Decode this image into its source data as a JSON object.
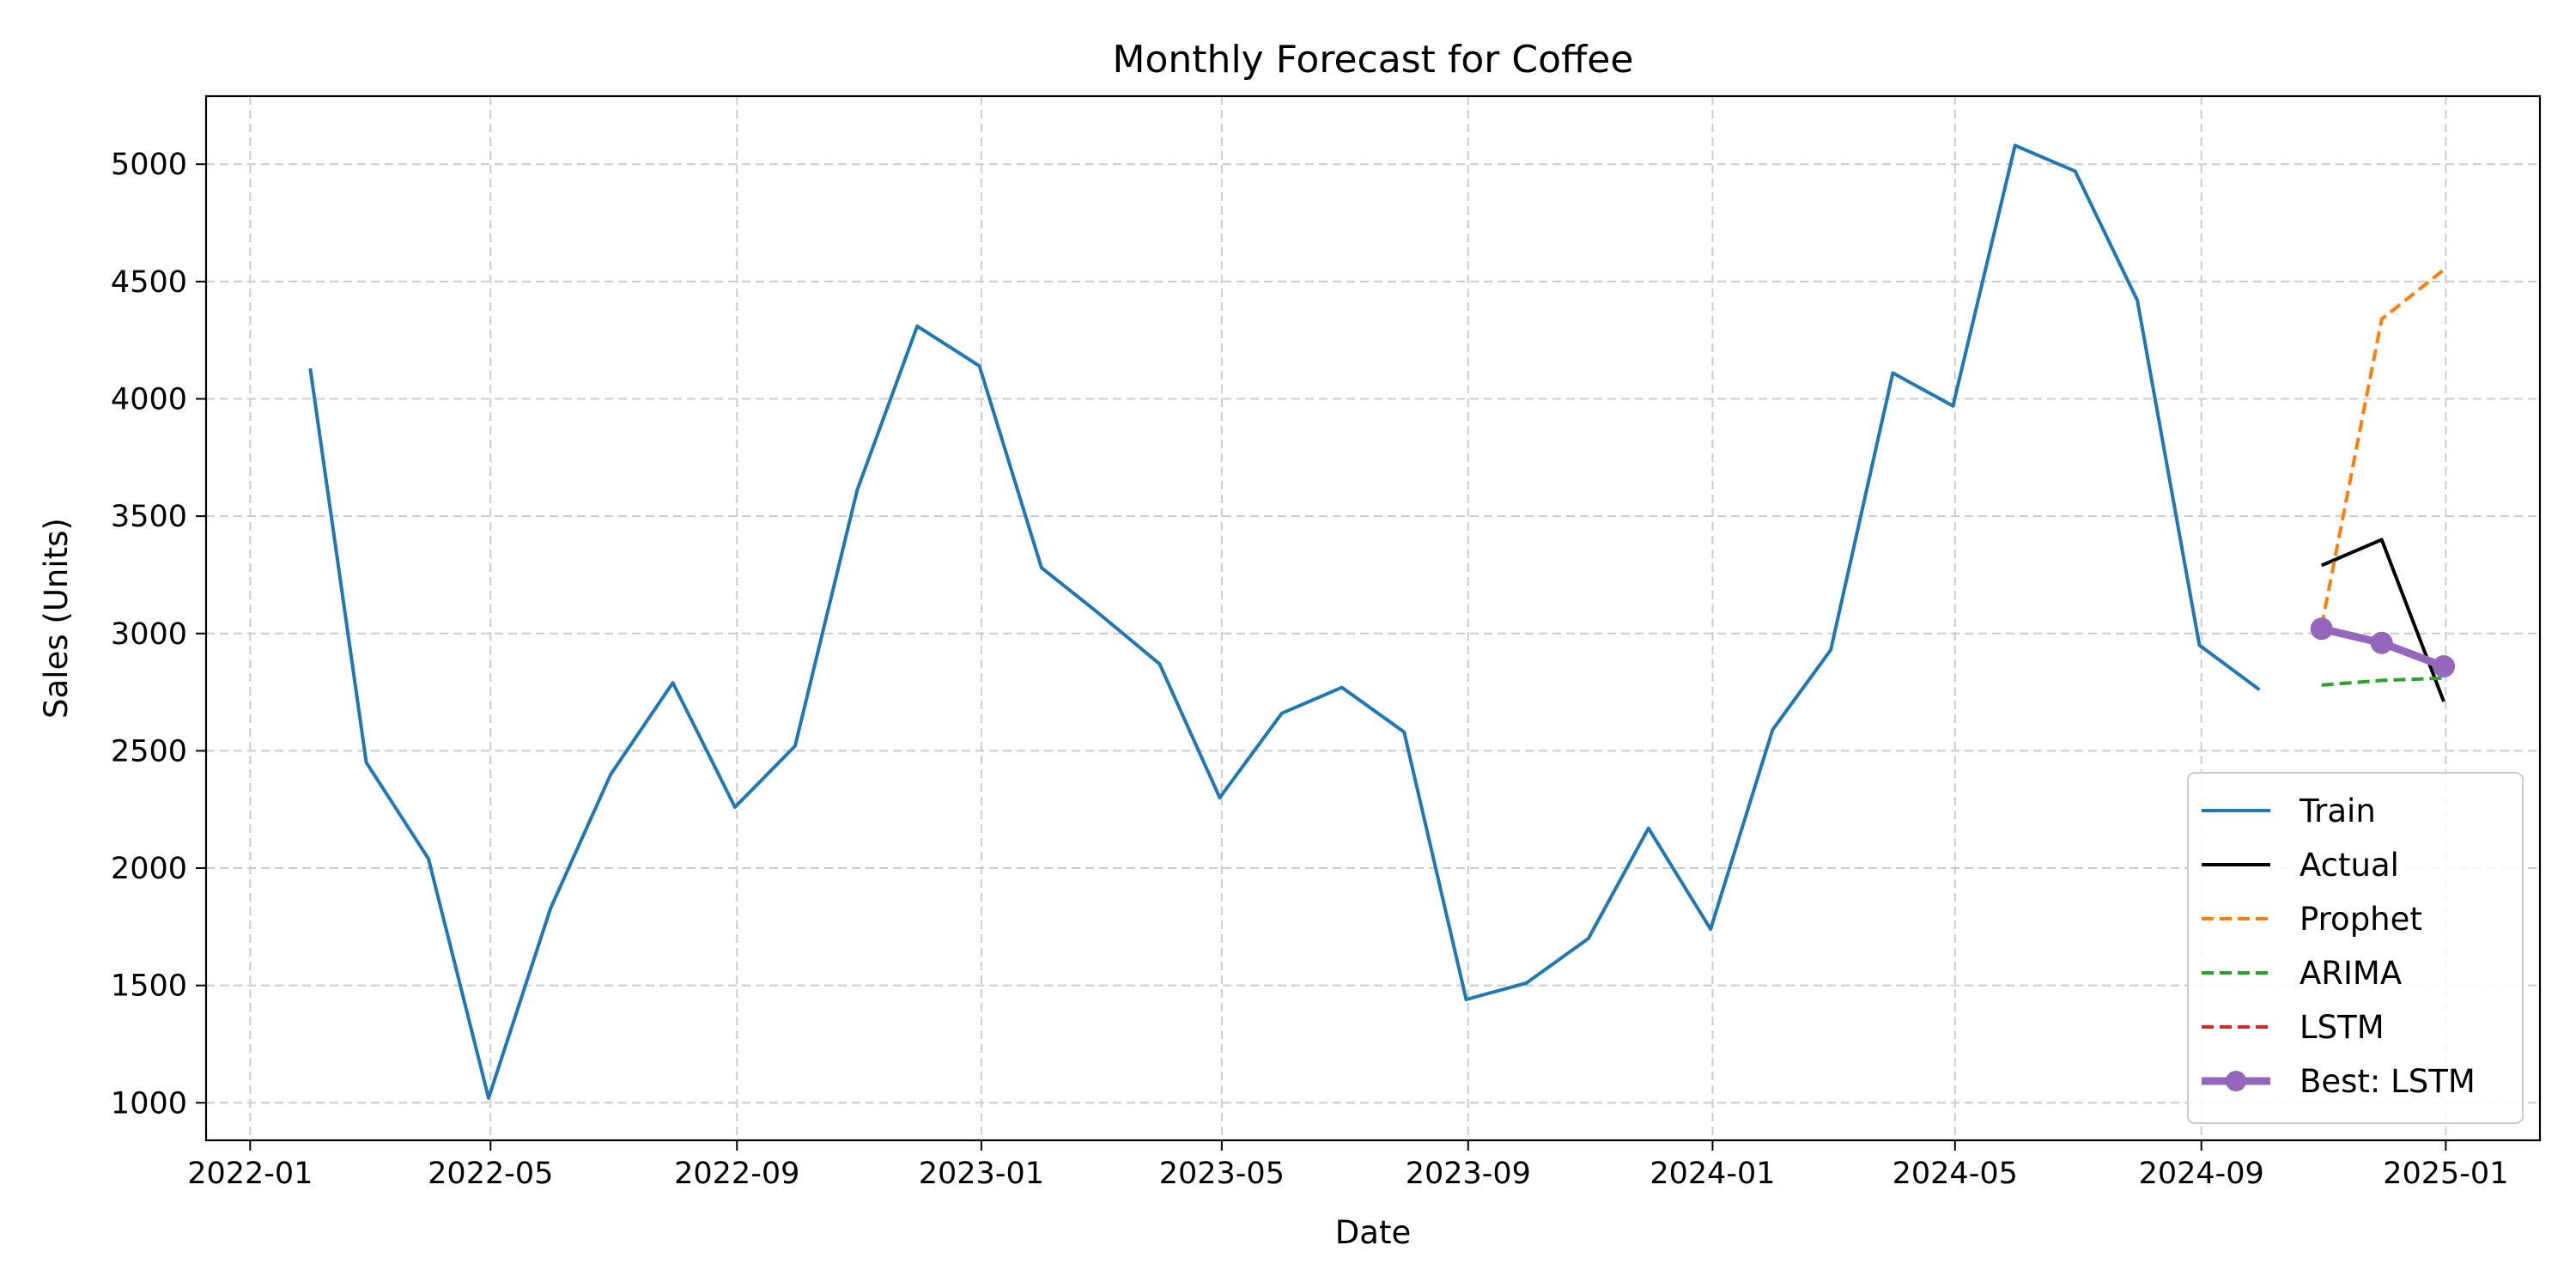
{
  "chart_data": {
    "type": "line",
    "title": "Monthly Forecast for Coffee",
    "xlabel": "Date",
    "ylabel": "Sales (Units)",
    "xlim": [
      "2021-12-10",
      "2025-02-17"
    ],
    "ylim": [
      840,
      5290
    ],
    "grid": true,
    "legend_position": "bottom-right",
    "x_ticks": [
      "2022-01",
      "2022-05",
      "2022-09",
      "2023-01",
      "2023-05",
      "2023-09",
      "2024-01",
      "2024-05",
      "2024-09",
      "2025-01"
    ],
    "y_ticks": [
      1000,
      1500,
      2000,
      2500,
      3000,
      3500,
      4000,
      4500,
      5000
    ],
    "series": [
      {
        "name": "Train",
        "color": "#1f77b4",
        "style": "solid",
        "x": [
          "2022-01-31",
          "2022-02-28",
          "2022-03-31",
          "2022-04-30",
          "2022-05-31",
          "2022-06-30",
          "2022-07-31",
          "2022-08-31",
          "2022-09-30",
          "2022-10-31",
          "2022-11-30",
          "2022-12-31",
          "2023-01-31",
          "2023-02-28",
          "2023-03-31",
          "2023-04-30",
          "2023-05-31",
          "2023-06-30",
          "2023-07-31",
          "2023-08-31",
          "2023-09-30",
          "2023-10-31",
          "2023-11-30",
          "2023-12-31",
          "2024-01-31",
          "2024-02-29",
          "2024-03-31",
          "2024-04-30",
          "2024-05-31",
          "2024-06-30",
          "2024-07-31",
          "2024-08-31",
          "2024-09-30"
        ],
        "y": [
          4130,
          2450,
          2040,
          1020,
          1830,
          2400,
          2790,
          2260,
          2520,
          3610,
          4310,
          4140,
          3280,
          3090,
          2870,
          2300,
          2660,
          2770,
          2580,
          1440,
          1510,
          1700,
          2170,
          1740,
          2590,
          2930,
          4110,
          3970,
          5080,
          4970,
          4420,
          2950,
          2760
        ]
      },
      {
        "name": "Actual",
        "color": "#000000",
        "style": "solid",
        "x": [
          "2024-10-31",
          "2024-11-30",
          "2024-12-31"
        ],
        "y": [
          3290,
          3400,
          2710
        ]
      },
      {
        "name": "Prophet",
        "color": "#ff7f0e",
        "style": "dashed",
        "x": [
          "2024-10-31",
          "2024-11-30",
          "2024-12-31"
        ],
        "y": [
          3030,
          4340,
          4550
        ]
      },
      {
        "name": "ARIMA",
        "color": "#2ca02c",
        "style": "dashed",
        "x": [
          "2024-10-31",
          "2024-11-30",
          "2024-12-31"
        ],
        "y": [
          2780,
          2800,
          2810
        ]
      },
      {
        "name": "LSTM",
        "color": "#d62728",
        "style": "dashed",
        "x": [
          "2024-10-31",
          "2024-11-30",
          "2024-12-31"
        ],
        "y": [
          3020,
          2960,
          2860
        ]
      },
      {
        "name": "Best: LSTM",
        "color": "#9467bd",
        "style": "bold-marker",
        "x": [
          "2024-10-31",
          "2024-11-30",
          "2024-12-31"
        ],
        "y": [
          3020,
          2960,
          2860
        ]
      }
    ]
  }
}
